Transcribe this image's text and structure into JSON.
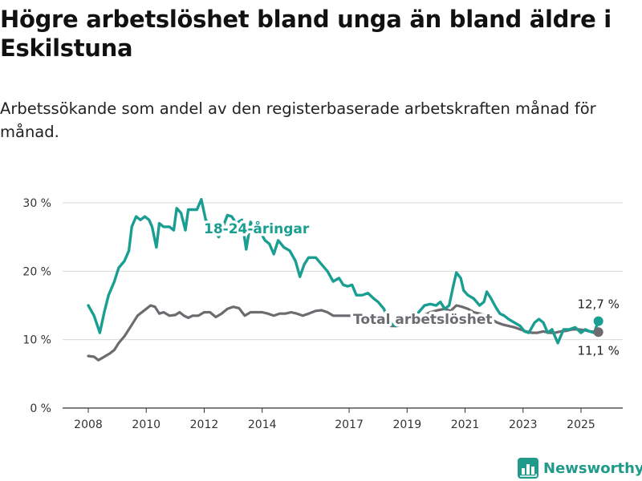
{
  "title": "Högre arbetslöshet bland unga än bland äldre i Eskilstuna",
  "subtitle": "Arbetssökande som andel av den registerbaserade arbetskraften månad för månad.",
  "brand": "Newsworthy",
  "colors": {
    "youth": "#1a9e92",
    "total": "#6d6b70",
    "grid": "#d9d9d9",
    "axis": "#333333",
    "brand": "#1f9a8b"
  },
  "chart_data": {
    "type": "line",
    "ylim": [
      0,
      30
    ],
    "y_ticks": [
      0,
      10,
      20,
      30
    ],
    "y_tick_labels": [
      "0 %",
      "10 %",
      "20 %",
      "30 %"
    ],
    "x_ticks": [
      2008,
      2010,
      2012,
      2014,
      2017,
      2019,
      2021,
      2023,
      2025
    ],
    "x_tick_labels": [
      "2008",
      "2010",
      "2012",
      "2014",
      "2017",
      "2019",
      "2021",
      "2023",
      "2025"
    ],
    "grid": true,
    "series": [
      {
        "name": "18-24-åringar",
        "color": "#1a9e92",
        "end_label": "12,7 %",
        "points": [
          [
            2008.0,
            15.0
          ],
          [
            2008.2,
            13.5
          ],
          [
            2008.4,
            11.0
          ],
          [
            2008.55,
            14.0
          ],
          [
            2008.7,
            16.5
          ],
          [
            2008.9,
            18.5
          ],
          [
            2009.05,
            20.5
          ],
          [
            2009.25,
            21.5
          ],
          [
            2009.4,
            23.0
          ],
          [
            2009.5,
            26.5
          ],
          [
            2009.65,
            28.0
          ],
          [
            2009.8,
            27.5
          ],
          [
            2009.95,
            28.0
          ],
          [
            2010.1,
            27.5
          ],
          [
            2010.2,
            26.5
          ],
          [
            2010.35,
            23.5
          ],
          [
            2010.45,
            27.0
          ],
          [
            2010.6,
            26.5
          ],
          [
            2010.8,
            26.5
          ],
          [
            2010.95,
            26.0
          ],
          [
            2011.05,
            29.2
          ],
          [
            2011.2,
            28.5
          ],
          [
            2011.35,
            26.0
          ],
          [
            2011.45,
            29.0
          ],
          [
            2011.6,
            29.0
          ],
          [
            2011.75,
            29.0
          ],
          [
            2011.9,
            30.5
          ],
          [
            2012.05,
            27.5
          ],
          [
            2012.3,
            26.5
          ],
          [
            2012.5,
            25.0
          ],
          [
            2012.65,
            26.5
          ],
          [
            2012.8,
            28.2
          ],
          [
            2012.95,
            28.0
          ],
          [
            2013.1,
            27.0
          ],
          [
            2013.3,
            27.5
          ],
          [
            2013.45,
            23.2
          ],
          [
            2013.6,
            27.2
          ],
          [
            2013.75,
            25.5
          ],
          [
            2013.9,
            26.0
          ],
          [
            2014.1,
            24.5
          ],
          [
            2014.25,
            24.0
          ],
          [
            2014.4,
            22.5
          ],
          [
            2014.55,
            24.5
          ],
          [
            2014.75,
            23.5
          ],
          [
            2014.95,
            23.0
          ],
          [
            2015.15,
            21.5
          ],
          [
            2015.3,
            19.2
          ],
          [
            2015.45,
            21.0
          ],
          [
            2015.6,
            22.0
          ],
          [
            2015.85,
            22.0
          ],
          [
            2016.05,
            21.0
          ],
          [
            2016.25,
            20.0
          ],
          [
            2016.45,
            18.5
          ],
          [
            2016.65,
            19.0
          ],
          [
            2016.8,
            18.0
          ],
          [
            2016.95,
            17.8
          ],
          [
            2017.1,
            18.0
          ],
          [
            2017.25,
            16.5
          ],
          [
            2017.45,
            16.5
          ],
          [
            2017.65,
            16.8
          ],
          [
            2017.85,
            16.0
          ],
          [
            2018.0,
            15.5
          ],
          [
            2018.2,
            14.5
          ],
          [
            2018.4,
            12.5
          ],
          [
            2018.6,
            12.0
          ],
          [
            2018.8,
            12.2
          ],
          [
            2019.0,
            12.5
          ],
          [
            2019.2,
            13.0
          ],
          [
            2019.4,
            14.0
          ],
          [
            2019.6,
            15.0
          ],
          [
            2019.8,
            15.2
          ],
          [
            2020.0,
            15.0
          ],
          [
            2020.15,
            15.5
          ],
          [
            2020.3,
            14.5
          ],
          [
            2020.45,
            15.0
          ],
          [
            2020.6,
            18.0
          ],
          [
            2020.7,
            19.8
          ],
          [
            2020.85,
            19.0
          ],
          [
            2020.95,
            17.2
          ],
          [
            2021.1,
            16.5
          ],
          [
            2021.3,
            16.0
          ],
          [
            2021.5,
            15.0
          ],
          [
            2021.65,
            15.5
          ],
          [
            2021.75,
            17.0
          ],
          [
            2021.9,
            16.0
          ],
          [
            2022.05,
            14.8
          ],
          [
            2022.2,
            13.8
          ],
          [
            2022.35,
            13.5
          ],
          [
            2022.5,
            13.0
          ],
          [
            2022.7,
            12.5
          ],
          [
            2022.9,
            12.0
          ],
          [
            2023.05,
            11.2
          ],
          [
            2023.2,
            11.0
          ],
          [
            2023.4,
            12.5
          ],
          [
            2023.55,
            13.0
          ],
          [
            2023.7,
            12.5
          ],
          [
            2023.85,
            11.0
          ],
          [
            2024.0,
            11.5
          ],
          [
            2024.2,
            9.5
          ],
          [
            2024.4,
            11.5
          ],
          [
            2024.6,
            11.5
          ],
          [
            2024.8,
            11.8
          ],
          [
            2025.0,
            11.0
          ],
          [
            2025.15,
            11.5
          ],
          [
            2025.3,
            11.2
          ],
          [
            2025.45,
            11.0
          ],
          [
            2025.6,
            12.7
          ]
        ]
      },
      {
        "name": "Total arbetslöshet",
        "color": "#6d6b70",
        "end_label": "11,1 %",
        "points": [
          [
            2008.0,
            7.6
          ],
          [
            2008.2,
            7.5
          ],
          [
            2008.35,
            7.0
          ],
          [
            2008.55,
            7.5
          ],
          [
            2008.75,
            8.0
          ],
          [
            2008.9,
            8.5
          ],
          [
            2009.05,
            9.5
          ],
          [
            2009.25,
            10.5
          ],
          [
            2009.4,
            11.5
          ],
          [
            2009.55,
            12.5
          ],
          [
            2009.7,
            13.5
          ],
          [
            2009.85,
            14.0
          ],
          [
            2010.0,
            14.5
          ],
          [
            2010.15,
            15.0
          ],
          [
            2010.3,
            14.8
          ],
          [
            2010.45,
            13.8
          ],
          [
            2010.6,
            14.0
          ],
          [
            2010.8,
            13.5
          ],
          [
            2011.0,
            13.6
          ],
          [
            2011.15,
            14.0
          ],
          [
            2011.3,
            13.5
          ],
          [
            2011.45,
            13.2
          ],
          [
            2011.6,
            13.5
          ],
          [
            2011.8,
            13.5
          ],
          [
            2012.0,
            14.0
          ],
          [
            2012.2,
            14.0
          ],
          [
            2012.4,
            13.3
          ],
          [
            2012.6,
            13.8
          ],
          [
            2012.8,
            14.5
          ],
          [
            2013.0,
            14.8
          ],
          [
            2013.2,
            14.6
          ],
          [
            2013.4,
            13.5
          ],
          [
            2013.6,
            14.0
          ],
          [
            2013.8,
            14.0
          ],
          [
            2014.0,
            14.0
          ],
          [
            2014.2,
            13.8
          ],
          [
            2014.4,
            13.5
          ],
          [
            2014.6,
            13.8
          ],
          [
            2014.8,
            13.8
          ],
          [
            2015.0,
            14.0
          ],
          [
            2015.2,
            13.8
          ],
          [
            2015.4,
            13.5
          ],
          [
            2015.6,
            13.8
          ],
          [
            2015.85,
            14.2
          ],
          [
            2016.05,
            14.3
          ],
          [
            2016.25,
            14.0
          ],
          [
            2016.45,
            13.5
          ],
          [
            2016.65,
            13.5
          ],
          [
            2016.85,
            13.5
          ],
          [
            2017.05,
            13.5
          ],
          [
            2017.25,
            13.3
          ],
          [
            2017.45,
            13.2
          ],
          [
            2017.65,
            13.0
          ],
          [
            2017.85,
            12.8
          ],
          [
            2018.05,
            12.5
          ],
          [
            2018.25,
            12.3
          ],
          [
            2018.45,
            12.0
          ],
          [
            2018.65,
            12.0
          ],
          [
            2018.85,
            12.2
          ],
          [
            2019.05,
            12.5
          ],
          [
            2019.3,
            13.0
          ],
          [
            2019.55,
            13.5
          ],
          [
            2019.8,
            14.0
          ],
          [
            2020.05,
            14.3
          ],
          [
            2020.3,
            14.5
          ],
          [
            2020.5,
            14.2
          ],
          [
            2020.7,
            15.0
          ],
          [
            2020.9,
            14.8
          ],
          [
            2021.1,
            14.5
          ],
          [
            2021.3,
            14.0
          ],
          [
            2021.5,
            13.8
          ],
          [
            2021.7,
            13.5
          ],
          [
            2021.9,
            13.0
          ],
          [
            2022.1,
            12.5
          ],
          [
            2022.3,
            12.2
          ],
          [
            2022.5,
            12.0
          ],
          [
            2022.7,
            11.8
          ],
          [
            2022.9,
            11.5
          ],
          [
            2023.1,
            11.2
          ],
          [
            2023.3,
            11.0
          ],
          [
            2023.5,
            11.0
          ],
          [
            2023.7,
            11.2
          ],
          [
            2023.9,
            11.0
          ],
          [
            2024.1,
            11.0
          ],
          [
            2024.3,
            11.2
          ],
          [
            2024.5,
            11.3
          ],
          [
            2024.7,
            11.5
          ],
          [
            2024.9,
            11.5
          ],
          [
            2025.1,
            11.4
          ],
          [
            2025.3,
            11.2
          ],
          [
            2025.6,
            11.1
          ]
        ]
      }
    ]
  }
}
